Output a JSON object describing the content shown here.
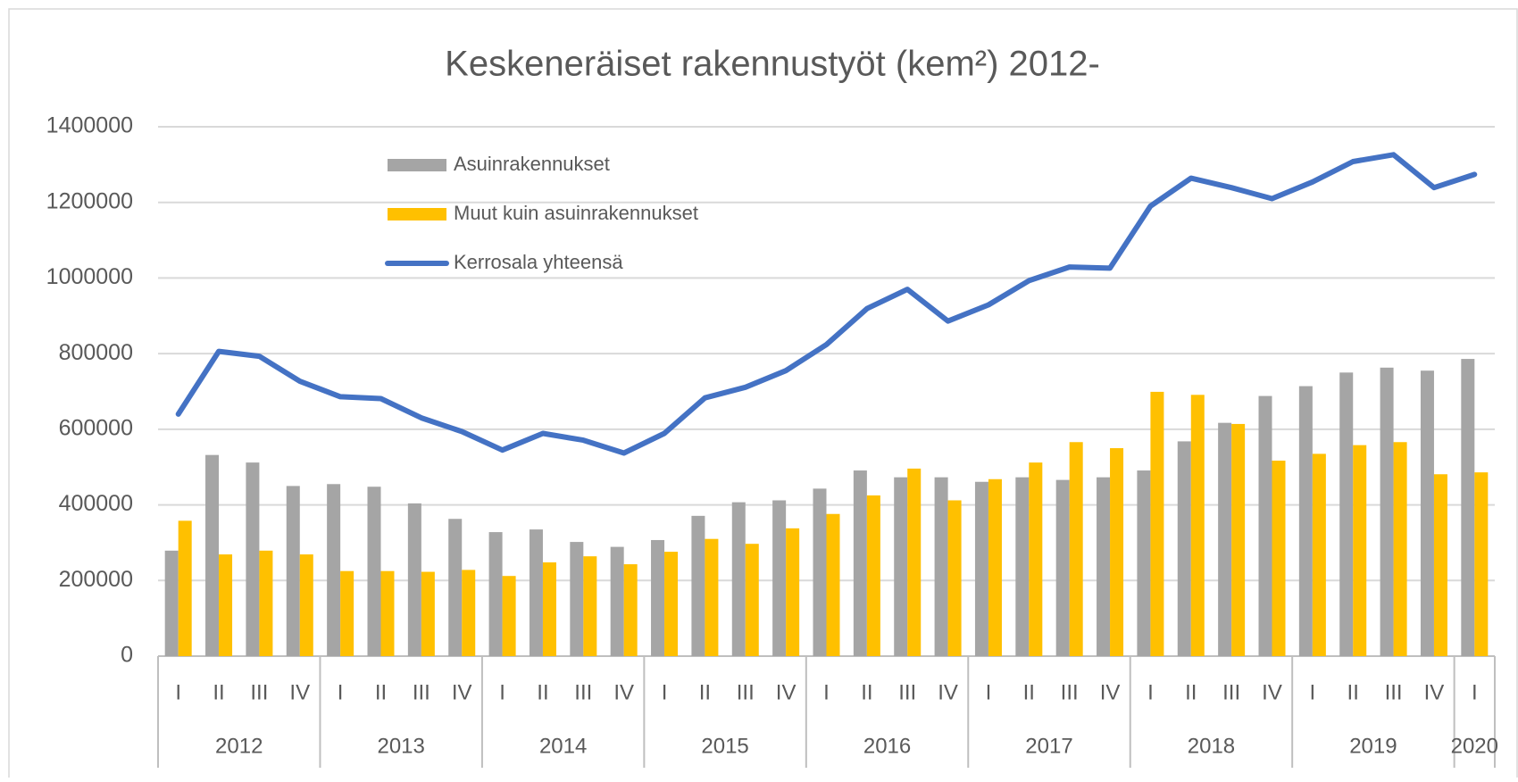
{
  "chart_data": {
    "type": "bar_line",
    "title": "Keskeneräiset rakennustyöt (kem²) 2012-",
    "categories": [
      "I",
      "II",
      "III",
      "IV",
      "I",
      "II",
      "III",
      "IV",
      "I",
      "II",
      "III",
      "IV",
      "I",
      "II",
      "III",
      "IV",
      "I",
      "II",
      "III",
      "IV",
      "I",
      "II",
      "III",
      "IV",
      "I",
      "II",
      "III",
      "IV",
      "I",
      "II",
      "III",
      "IV",
      "I"
    ],
    "years": [
      "2012",
      "2013",
      "2014",
      "2015",
      "2016",
      "2017",
      "2018",
      "2019",
      "2020"
    ],
    "series": [
      {
        "name": "Asuinrakennukset",
        "type": "bar",
        "color": "#a5a5a5",
        "values": [
          279000,
          532000,
          512000,
          450000,
          455000,
          448000,
          404000,
          363000,
          328000,
          335000,
          302000,
          289000,
          307000,
          371000,
          407000,
          412000,
          443000,
          491000,
          473000,
          473000,
          461000,
          473000,
          466000,
          473000,
          491000,
          568000,
          617000,
          688000,
          714000,
          750000,
          763000,
          755000,
          786000
        ]
      },
      {
        "name": "Muut kuin asuinrakennukset",
        "type": "bar",
        "color": "#ffc000",
        "values": [
          358000,
          269000,
          279000,
          269000,
          225000,
          225000,
          223000,
          228000,
          212000,
          248000,
          264000,
          243000,
          276000,
          310000,
          297000,
          338000,
          376000,
          425000,
          496000,
          412000,
          468000,
          512000,
          566000,
          550000,
          699000,
          691000,
          614000,
          517000,
          535000,
          558000,
          566000,
          481000,
          486000
        ]
      },
      {
        "name": "Kerrosala yhteensä",
        "type": "line",
        "color": "#4472c4",
        "values": [
          640000,
          806000,
          793000,
          727000,
          686000,
          681000,
          630000,
          594000,
          545000,
          589000,
          571000,
          537000,
          589000,
          683000,
          711000,
          755000,
          824000,
          919000,
          970000,
          886000,
          929000,
          993000,
          1029000,
          1026000,
          1190000,
          1264000,
          1239000,
          1210000,
          1254000,
          1308000,
          1326000,
          1239000,
          1274000
        ]
      }
    ],
    "ylim": [
      0,
      1400000
    ],
    "yticks": [
      0,
      200000,
      400000,
      600000,
      800000,
      1000000,
      1200000,
      1400000
    ],
    "grid": true,
    "legend": "top-left"
  }
}
